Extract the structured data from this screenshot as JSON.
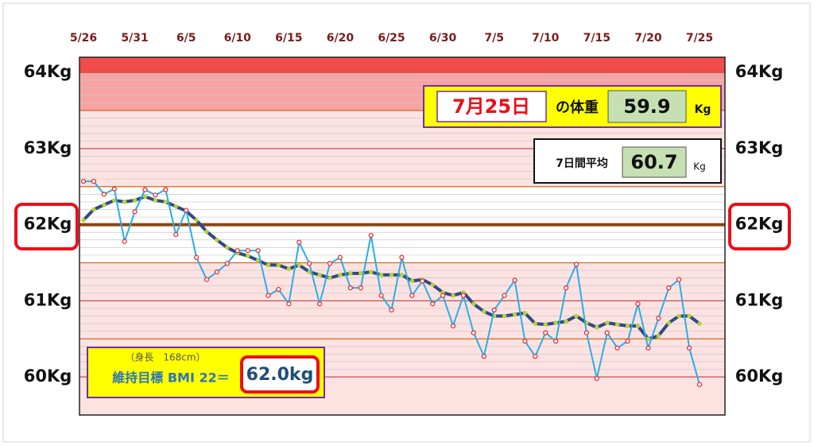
{
  "chart_data": {
    "type": "line",
    "categories": [
      "5/26",
      null,
      null,
      null,
      null,
      "5/31",
      null,
      null,
      null,
      null,
      "6/5",
      null,
      null,
      null,
      null,
      "6/10",
      null,
      null,
      null,
      null,
      "6/15",
      null,
      null,
      null,
      null,
      "6/20",
      null,
      null,
      null,
      null,
      "6/25",
      null,
      null,
      null,
      null,
      "6/30",
      null,
      null,
      null,
      null,
      "7/5",
      null,
      null,
      null,
      null,
      "7/10",
      null,
      null,
      null,
      null,
      "7/15",
      null,
      null,
      null,
      null,
      "7/20",
      null,
      null,
      null,
      null,
      "7/25"
    ],
    "series": [
      {
        "name": "体重",
        "color": "#29aee6",
        "marker": "#e8202a",
        "values": [
          62.57,
          62.57,
          62.4,
          62.47,
          61.78,
          62.17,
          62.46,
          62.39,
          62.46,
          61.87,
          62.19,
          61.57,
          61.28,
          61.38,
          61.49,
          61.66,
          61.66,
          61.66,
          61.07,
          61.15,
          60.96,
          61.77,
          61.49,
          60.96,
          61.49,
          61.57,
          61.17,
          61.17,
          61.86,
          61.07,
          60.88,
          61.57,
          61.07,
          61.26,
          60.96,
          61.07,
          60.67,
          61.07,
          60.58,
          60.27,
          60.88,
          61.07,
          61.27,
          60.47,
          60.27,
          60.58,
          60.47,
          61.17,
          61.48,
          60.58,
          59.98,
          60.58,
          60.38,
          60.47,
          60.96,
          60.38,
          60.77,
          61.17,
          61.28,
          60.38,
          59.9
        ]
      },
      {
        "name": "7日間平均",
        "color": "#2e4a86",
        "marker": "#b5d334",
        "values": [
          62.06,
          62.2,
          62.26,
          62.32,
          62.3,
          62.32,
          62.37,
          62.32,
          62.3,
          62.24,
          62.18,
          62.06,
          61.91,
          61.8,
          61.7,
          61.63,
          61.59,
          61.53,
          61.47,
          61.47,
          61.42,
          61.47,
          61.38,
          61.34,
          61.3,
          61.34,
          61.36,
          61.36,
          61.38,
          61.34,
          61.34,
          61.34,
          61.26,
          61.28,
          61.21,
          61.11,
          61.07,
          61.11,
          60.96,
          60.86,
          60.8,
          60.8,
          60.82,
          60.84,
          60.7,
          60.69,
          60.71,
          60.73,
          60.8,
          60.71,
          60.65,
          60.71,
          60.69,
          60.67,
          60.67,
          60.5,
          60.54,
          60.71,
          60.8,
          60.8,
          60.7
        ]
      }
    ],
    "ylim": [
      59.5,
      64.2
    ],
    "yticks": [
      {
        "value": 60,
        "label": "60Kg"
      },
      {
        "value": 61,
        "label": "61Kg"
      },
      {
        "value": 62,
        "label": "62Kg"
      },
      {
        "value": 63,
        "label": "63Kg"
      },
      {
        "value": 64,
        "label": "64Kg"
      }
    ],
    "goal": {
      "value": 62,
      "label": "62.0kg"
    },
    "panel_today": {
      "date": "7月25日",
      "text": "の体重",
      "value": "59.9",
      "unit": "Kg"
    },
    "panel_avg": {
      "text": "7日間平均",
      "value": "60.7",
      "unit": "Kg"
    },
    "panel_goal": {
      "height": "（身長　168cm）",
      "text": "維持目標 BMI 22＝"
    }
  }
}
